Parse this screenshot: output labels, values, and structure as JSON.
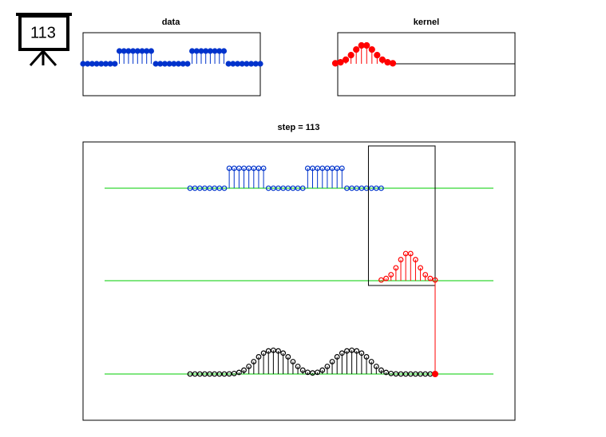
{
  "icon_label": "113",
  "chart_data": [
    {
      "type": "stem",
      "title": "data",
      "color": "#0033cc",
      "values": [
        0,
        0,
        0,
        0,
        0,
        0,
        0,
        0,
        1,
        1,
        1,
        1,
        1,
        1,
        1,
        1,
        0,
        0,
        0,
        0,
        0,
        0,
        0,
        0,
        1,
        1,
        1,
        1,
        1,
        1,
        1,
        1,
        0,
        0,
        0,
        0,
        0,
        0,
        0,
        0
      ]
    },
    {
      "type": "stem",
      "title": "kernel",
      "color": "#ff0000",
      "values": [
        0.005,
        0.016,
        0.043,
        0.092,
        0.151,
        0.194,
        0.194,
        0.151,
        0.092,
        0.043,
        0.016,
        0.005
      ]
    },
    {
      "type": "stem",
      "title": "step = 113",
      "color": "#000000",
      "axis_color": "#00cc00",
      "values": [
        0,
        0,
        0,
        0,
        0,
        0,
        0,
        0,
        0.005,
        0.021,
        0.064,
        0.156,
        0.307,
        0.501,
        0.695,
        0.846,
        0.933,
        0.96,
        0.933,
        0.846,
        0.695,
        0.501,
        0.307,
        0.156,
        0.069,
        0.042,
        0.069,
        0.156,
        0.307,
        0.501,
        0.695,
        0.846,
        0.933,
        0.96,
        0.933,
        0.846,
        0.695,
        0.501,
        0.307,
        0.156,
        0.064,
        0.021,
        0.005,
        0,
        0,
        0,
        0,
        0,
        0,
        0,
        0
      ]
    }
  ]
}
